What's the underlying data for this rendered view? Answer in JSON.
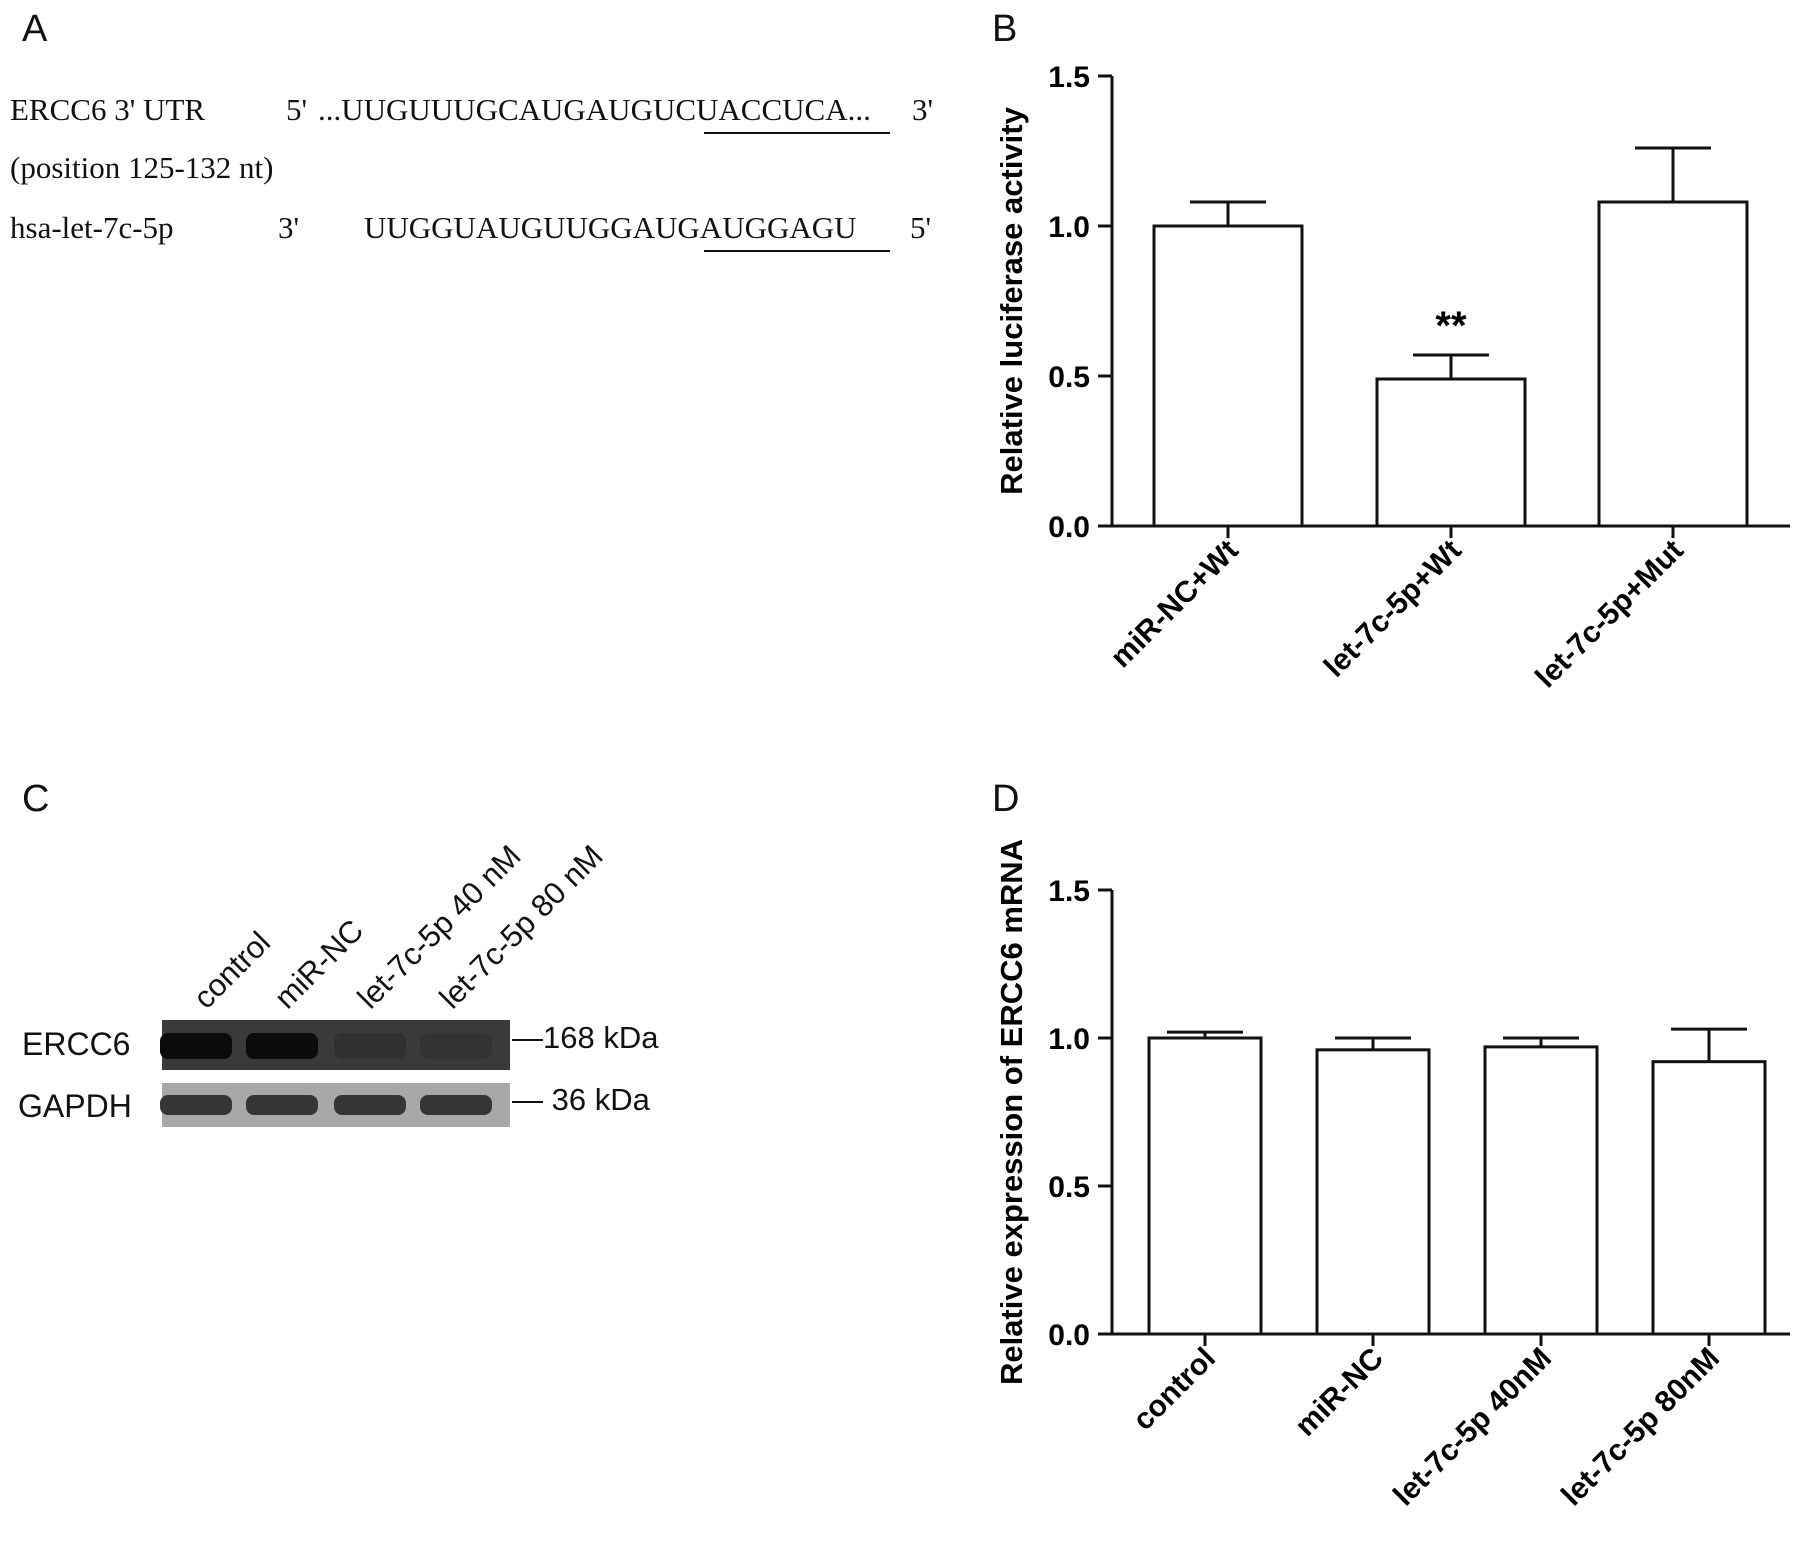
{
  "panels": {
    "A": {
      "letter": "A",
      "utr_label": "ERCC6 3' UTR",
      "utr_end5": "5'",
      "utr_seq_prefix": "...UUGUUUGCAUGAUGU",
      "utr_seq_site": "CUACCUCA",
      "utr_seq_suffix": "...",
      "utr_end3": "3'",
      "position_note": "(position 125-132 nt)",
      "mirna_label": "hsa-let-7c-5p",
      "mirna_end3": "3'",
      "mirna_seq_prefix": "UUGGUAUGUUGGAU",
      "mirna_seq_site": "GAUGGAGU",
      "mirna_end5": "5'"
    },
    "B": {
      "letter": "B"
    },
    "C": {
      "letter": "C",
      "lanes": [
        "control",
        "miR-NC",
        "let-7c-5p 40 nM",
        "let-7c-5p 80 nM"
      ],
      "rows": [
        {
          "name": "ERCC6",
          "size": "168 kDa",
          "band_intensity": [
            0.95,
            0.95,
            0.2,
            0.15
          ]
        },
        {
          "name": "GAPDH",
          "size": "36 kDa",
          "band_intensity": [
            0.85,
            0.85,
            0.85,
            0.85
          ]
        }
      ]
    },
    "D": {
      "letter": "D"
    }
  },
  "chart_data": [
    {
      "panel": "B",
      "type": "bar",
      "categories": [
        "miR-NC+Wt",
        "let-7c-5p+Wt",
        "let-7c-5p+Mut"
      ],
      "values": [
        1.0,
        0.49,
        1.08
      ],
      "errors": [
        0.08,
        0.08,
        0.18
      ],
      "annotations": [
        "",
        "**",
        ""
      ],
      "ylabel": "Relative luciferase activity",
      "xlabel": "",
      "ylim": [
        0,
        1.5
      ],
      "yticks": [
        "0.0",
        "0.5",
        "1.0",
        "1.5"
      ],
      "ytick_values": [
        0,
        0.5,
        1.0,
        1.5
      ],
      "bar_fill": "#ffffff",
      "bar_stroke": "#111111"
    },
    {
      "panel": "D",
      "type": "bar",
      "categories": [
        "control",
        "miR-NC",
        "let-7c-5p 40nM",
        "let-7c-5p 80nM"
      ],
      "values": [
        1.0,
        0.96,
        0.97,
        0.92
      ],
      "errors": [
        0.02,
        0.04,
        0.03,
        0.11
      ],
      "annotations": [
        "",
        "",
        "",
        ""
      ],
      "ylabel": "Relative expression of ERCC6 mRNA",
      "xlabel": "",
      "ylim": [
        0,
        1.5
      ],
      "yticks": [
        "0.0",
        "0.5",
        "1.0",
        "1.5"
      ],
      "ytick_values": [
        0,
        0.5,
        1.0,
        1.5
      ],
      "bar_fill": "#ffffff",
      "bar_stroke": "#111111"
    }
  ]
}
